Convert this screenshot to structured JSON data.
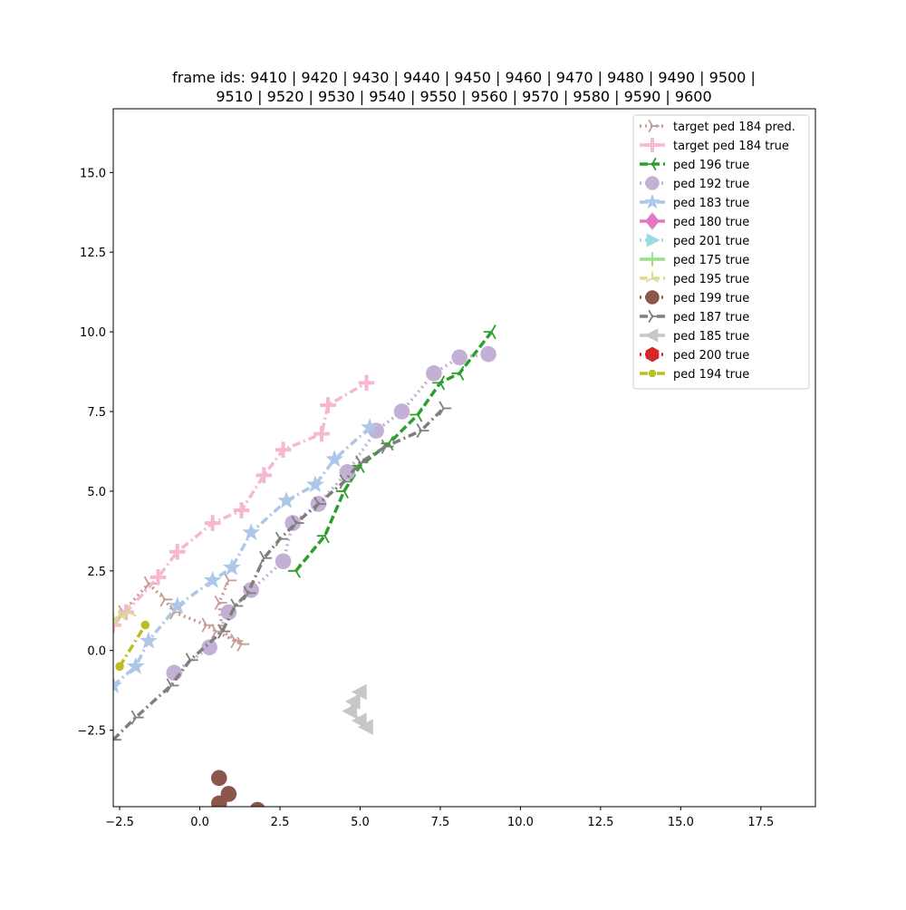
{
  "chart_data": {
    "type": "line",
    "title_lines": [
      "frame ids: 9410 | 9420 | 9430 | 9440 | 9450 | 9460 | 9470 | 9480 | 9490 | 9500 |",
      "9510 | 9520 | 9530 | 9540 | 9550 | 9560 | 9570 | 9580 | 9590 | 9600"
    ],
    "xlabel": "",
    "ylabel": "",
    "xlim": [
      -2.7,
      19.2
    ],
    "ylim": [
      -4.9,
      17.0
    ],
    "xticks": [
      -2.5,
      0.0,
      2.5,
      5.0,
      7.5,
      10.0,
      12.5,
      15.0,
      17.5
    ],
    "xtick_labels": [
      "−2.5",
      "0.0",
      "2.5",
      "5.0",
      "7.5",
      "10.0",
      "12.5",
      "15.0",
      "17.5"
    ],
    "yticks": [
      -2.5,
      0.0,
      2.5,
      5.0,
      7.5,
      10.0,
      12.5,
      15.0
    ],
    "ytick_labels": [
      "−2.5",
      "0.0",
      "2.5",
      "5.0",
      "7.5",
      "10.0",
      "12.5",
      "15.0"
    ],
    "grid": false,
    "legend_position": "top-right",
    "series": [
      {
        "name": "target ped 184 pred.",
        "color": "#c49c94",
        "dash": "dot",
        "marker": "tri_right",
        "points": [
          [
            -2.7,
            0.8
          ],
          [
            -2.4,
            1.2
          ],
          [
            -1.6,
            2.1
          ],
          [
            -1.1,
            1.6
          ],
          [
            -0.8,
            1.2
          ],
          [
            0.2,
            0.8
          ],
          [
            0.5,
            0.6
          ],
          [
            1.1,
            0.3
          ],
          [
            1.3,
            0.2
          ],
          [
            0.7,
            0.6
          ],
          [
            0.6,
            1.5
          ],
          [
            0.9,
            2.2
          ]
        ]
      },
      {
        "name": "target ped 184 true",
        "color": "#f7b6d2",
        "dash": "dashdot",
        "marker": "plus",
        "points": [
          [
            -2.7,
            0.8
          ],
          [
            -2.3,
            1.2
          ],
          [
            -1.3,
            2.3
          ],
          [
            -0.7,
            3.1
          ],
          [
            0.4,
            4.0
          ],
          [
            1.3,
            4.4
          ],
          [
            2.0,
            5.5
          ],
          [
            2.6,
            6.3
          ],
          [
            3.8,
            6.8
          ],
          [
            4.0,
            7.7
          ],
          [
            5.2,
            8.4
          ]
        ]
      },
      {
        "name": "ped 196 true",
        "color": "#2ca02c",
        "dash": "dash",
        "marker": "tri_left",
        "points": [
          [
            3.0,
            2.5
          ],
          [
            3.9,
            3.6
          ],
          [
            4.5,
            5.0
          ],
          [
            5.0,
            5.8
          ],
          [
            5.9,
            6.5
          ],
          [
            6.8,
            7.4
          ],
          [
            7.5,
            8.4
          ],
          [
            8.1,
            8.7
          ],
          [
            9.1,
            10.0
          ]
        ]
      },
      {
        "name": "ped 192 true",
        "color": "#c5b0d5",
        "dash": "dot",
        "marker": "circle",
        "points": [
          [
            -0.8,
            -0.7
          ],
          [
            0.3,
            0.1
          ],
          [
            0.9,
            1.2
          ],
          [
            1.6,
            1.9
          ],
          [
            2.6,
            2.8
          ],
          [
            2.9,
            4.0
          ],
          [
            3.7,
            4.6
          ],
          [
            4.6,
            5.6
          ],
          [
            5.5,
            6.9
          ],
          [
            6.3,
            7.5
          ],
          [
            7.3,
            8.7
          ],
          [
            8.1,
            9.2
          ],
          [
            9.0,
            9.3
          ]
        ]
      },
      {
        "name": "ped 183 true",
        "color": "#aec7e8",
        "dash": "dashdot",
        "marker": "star",
        "points": [
          [
            -2.7,
            -1.1
          ],
          [
            -2.0,
            -0.5
          ],
          [
            -1.6,
            0.3
          ],
          [
            -0.7,
            1.4
          ],
          [
            0.4,
            2.2
          ],
          [
            1.0,
            2.6
          ],
          [
            1.6,
            3.7
          ],
          [
            2.7,
            4.7
          ],
          [
            3.6,
            5.2
          ],
          [
            4.2,
            6.0
          ],
          [
            5.3,
            7.0
          ]
        ]
      },
      {
        "name": "ped 180 true",
        "color": "#e377c2",
        "dash": "solid",
        "marker": "diamond",
        "points": []
      },
      {
        "name": "ped 201 true",
        "color": "#9edae5",
        "dash": "dot",
        "marker": "tri_right_filled",
        "points": []
      },
      {
        "name": "ped 175 true",
        "color": "#98df8a",
        "dash": "solid",
        "marker": "vline",
        "points": []
      },
      {
        "name": "ped 195 true",
        "color": "#dbdb8d",
        "dash": "dash",
        "marker": "tri_up",
        "points": [
          [
            -2.7,
            0.9
          ],
          [
            -2.5,
            1.1
          ],
          [
            -2.2,
            1.2
          ]
        ]
      },
      {
        "name": "ped 199 true",
        "color": "#8c564b",
        "dash": "dot",
        "marker": "circle",
        "points": [
          [
            0.6,
            -4.0
          ],
          [
            0.9,
            -4.5
          ],
          [
            0.6,
            -4.8
          ],
          [
            1.1,
            -5.2
          ],
          [
            1.8,
            -5.0
          ]
        ]
      },
      {
        "name": "ped 187 true",
        "color": "#7f7f7f",
        "dash": "dashdot",
        "marker": "tri_right",
        "points": [
          [
            -2.7,
            -2.8
          ],
          [
            -2.0,
            -2.1
          ],
          [
            -0.9,
            -1.1
          ],
          [
            -0.3,
            -0.3
          ],
          [
            0.7,
            0.6
          ],
          [
            1.1,
            1.4
          ],
          [
            1.5,
            1.8
          ],
          [
            2.0,
            2.9
          ],
          [
            2.5,
            3.5
          ],
          [
            3.0,
            4.0
          ],
          [
            3.7,
            4.6
          ],
          [
            4.5,
            5.3
          ],
          [
            5.0,
            5.9
          ],
          [
            5.8,
            6.4
          ],
          [
            6.9,
            6.9
          ],
          [
            7.6,
            7.6
          ]
        ]
      },
      {
        "name": "ped 185 true",
        "color": "#c7c7c7",
        "dash": "solid",
        "marker": "tri_left_filled",
        "points": [
          [
            5.2,
            -2.4
          ],
          [
            5.0,
            -2.2
          ],
          [
            4.7,
            -1.9
          ],
          [
            4.8,
            -1.6
          ],
          [
            5.0,
            -1.3
          ]
        ]
      },
      {
        "name": "ped 200 true",
        "color": "#d62728",
        "dash": "dot",
        "marker": "hexagon",
        "points": []
      },
      {
        "name": "ped 194 true",
        "color": "#bcbd22",
        "dash": "dashdot",
        "marker": "dot",
        "points": [
          [
            -2.5,
            -0.5
          ],
          [
            -1.7,
            0.8
          ]
        ]
      }
    ]
  }
}
